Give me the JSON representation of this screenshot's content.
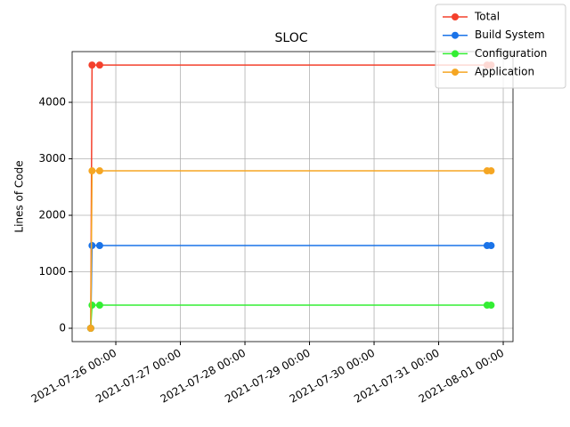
{
  "chart_data": {
    "type": "line",
    "title": "SLOC",
    "y_label": "Lines of Code",
    "x": [
      "2021-07-25 14:40",
      "2021-07-25 15:10",
      "2021-07-25 18:00",
      "2021-07-31 18:00",
      "2021-07-31 19:30"
    ],
    "series": [
      {
        "name": "Total",
        "color": "#f4402c",
        "values": [
          0,
          4660,
          4660,
          4660,
          4660
        ]
      },
      {
        "name": "Build System",
        "color": "#1a73e8",
        "values": [
          0,
          1464,
          1464,
          1464,
          1464
        ]
      },
      {
        "name": "Configuration",
        "color": "#33ee33",
        "values": [
          0,
          409,
          409,
          409,
          409
        ]
      },
      {
        "name": "Application",
        "color": "#f5a623",
        "values": [
          0,
          2787,
          2787,
          2787,
          2787
        ]
      }
    ],
    "xlim": [
      "2021-07-25 07:46",
      "2021-08-01 03:38"
    ],
    "xticks": [
      "2021-07-26 00:00",
      "2021-07-27 00:00",
      "2021-07-28 00:00",
      "2021-07-29 00:00",
      "2021-07-30 00:00",
      "2021-07-31 00:00",
      "2021-08-01 00:00"
    ],
    "ylim": [
      -236,
      4898
    ],
    "yticks": [
      0,
      1000,
      2000,
      3000,
      4000
    ],
    "grid": true,
    "legend": "upper right"
  }
}
